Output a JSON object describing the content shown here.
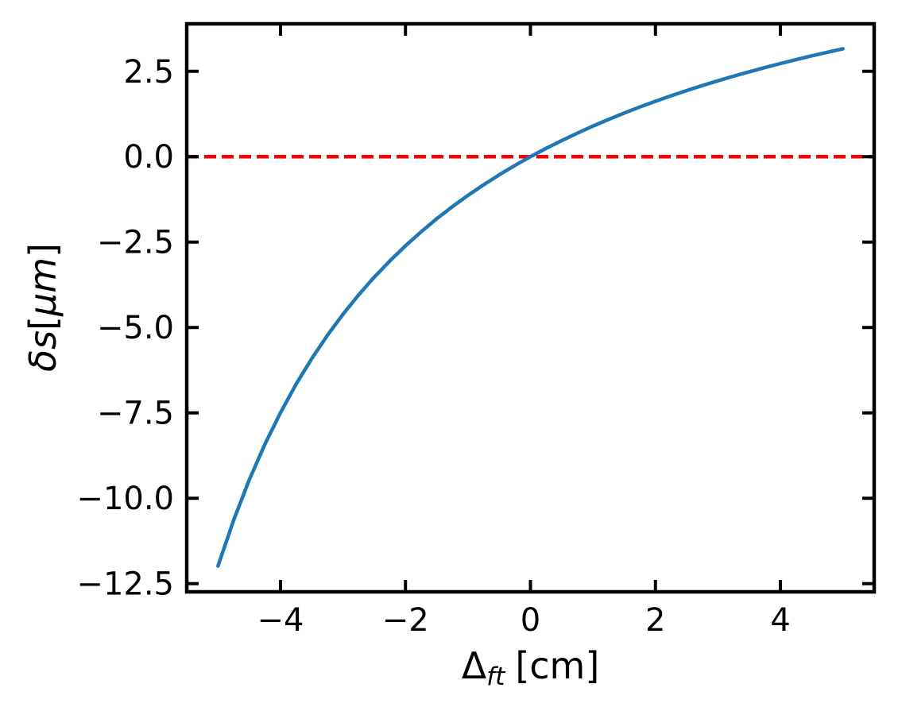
{
  "figure": {
    "background": "#ffffff",
    "text_color": "#000000",
    "spine_color": "#000000"
  },
  "chart_data": {
    "type": "line",
    "title": "",
    "xlabel": {
      "sym": "Δ",
      "sub": "ft",
      "unit": "[cm]",
      "text": "Δft [cm]"
    },
    "ylabel": {
      "sym": "δs",
      "open": "[",
      "unit": "μm",
      "close": "]",
      "text": "δs[μm]"
    },
    "xlim": [
      -5.5,
      5.5
    ],
    "ylim": [
      -12.74,
      3.89
    ],
    "grid": false,
    "legend": null,
    "tick_style": {
      "direction": "in",
      "sides": [
        "bottom",
        "top",
        "left",
        "right"
      ]
    },
    "x_ticks": {
      "values": [
        -4,
        -2,
        0,
        2,
        4
      ],
      "labels": [
        "−4",
        "−2",
        "0",
        "2",
        "4"
      ]
    },
    "y_ticks": {
      "values": [
        2.5,
        0.0,
        -2.5,
        -5.0,
        -7.5,
        -10.0,
        -12.5
      ],
      "labels": [
        "2.5",
        "0.0",
        "−2.5",
        "−5.0",
        "−7.5",
        "−10.0",
        "−12.5"
      ]
    },
    "series": [
      {
        "name": "zero-reference-line",
        "kind": "hline",
        "color": "#ff0000",
        "linestyle": "dashed",
        "linewidth": 4.5,
        "y": 0.0
      },
      {
        "name": "delta-s-curve",
        "kind": "line",
        "color": "#1f77b4",
        "linestyle": "solid",
        "linewidth": 4.5,
        "x": [
          -5,
          -4.75,
          -4.5,
          -4.25,
          -4,
          -3.75,
          -3.5,
          -3.25,
          -3,
          -2.75,
          -2.5,
          -2.25,
          -2,
          -1.75,
          -1.5,
          -1.25,
          -1,
          -0.75,
          -0.5,
          -0.25,
          0,
          0.25,
          0.5,
          0.75,
          1,
          1.25,
          1.5,
          1.75,
          2,
          2.25,
          2.5,
          2.75,
          3,
          3.25,
          3.5,
          3.75,
          4,
          4.25,
          4.5,
          4.75,
          5
        ],
        "y": [
          -11.983,
          -10.641,
          -9.463,
          -8.422,
          -7.493,
          -6.661,
          -5.911,
          -5.232,
          -4.613,
          -4.047,
          -3.528,
          -3.05,
          -2.608,
          -2.198,
          -1.818,
          -1.463,
          -1.132,
          -0.822,
          -0.531,
          -0.258,
          0,
          0.243,
          0.472,
          0.69,
          0.896,
          1.091,
          1.277,
          1.454,
          1.622,
          1.783,
          1.936,
          2.083,
          2.223,
          2.357,
          2.486,
          2.609,
          2.728,
          2.842,
          2.952,
          3.057,
          3.159
        ]
      }
    ]
  },
  "style": {
    "spine_width": 4.5,
    "tick_width": 4,
    "tick_length": 15,
    "tick_font_size": 40,
    "dash_on": 15,
    "dash_off": 7
  }
}
